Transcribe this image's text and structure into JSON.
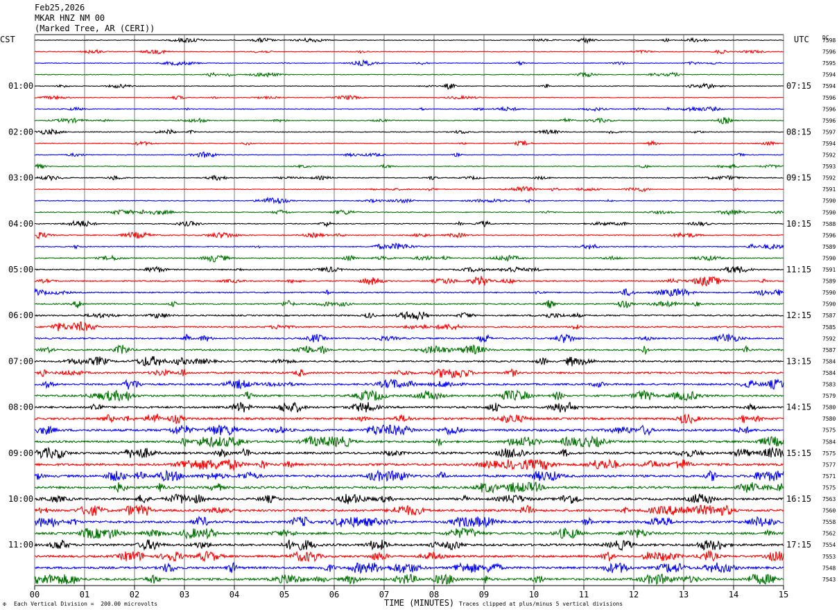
{
  "header": {
    "date": "Feb25,2026",
    "station": "MKAR HNZ NM 00",
    "location": "(Marked Tree, AR (CERI))"
  },
  "left_zone": "CST",
  "right_zone": "UTC",
  "dc_label": "DC",
  "footer": {
    "scale_note": "Each Vertical Division =  200.00 microvolts",
    "clip_note": "Traces clipped at plus/minus 5 vertical divisions",
    "mark": "✠"
  },
  "colors": {
    "trace_cycle": [
      "#000000",
      "#ff0000",
      "#0000ff",
      "#007000"
    ],
    "grid": "#000000"
  },
  "chart_data": {
    "type": "line",
    "title": "",
    "xlabel": "TIME (MINUTES)",
    "x_ticks": [
      "00",
      "01",
      "02",
      "03",
      "04",
      "05",
      "06",
      "07",
      "08",
      "09",
      "10",
      "11",
      "12",
      "13",
      "14",
      "15"
    ],
    "xlim": [
      0,
      15
    ],
    "grid": true,
    "left_time_labels": [
      "01:00",
      "02:00",
      "03:00",
      "04:00",
      "05:00",
      "06:00",
      "07:00",
      "08:00",
      "09:00",
      "10:00",
      "11:00"
    ],
    "right_time_labels": [
      "07:15",
      "08:15",
      "09:15",
      "10:15",
      "11:15",
      "12:15",
      "13:15",
      "14:15",
      "15:15",
      "16:15",
      "17:15"
    ],
    "dc_offsets": [
      "7598",
      "7596",
      "7595",
      "7594",
      "7594",
      "7596",
      "7596",
      "7596",
      "7597",
      "7594",
      "7592",
      "7593",
      "7592",
      "7591",
      "7590",
      "7590",
      "7588",
      "7596",
      "7589",
      "7590",
      "7591",
      "7589",
      "7590",
      "7590",
      "7587",
      "7585",
      "7592",
      "7587",
      "7584",
      "7584",
      "7583",
      "7579",
      "7580",
      "7580",
      "7575",
      "7584",
      "7575",
      "7577",
      "7571",
      "7575",
      "7563",
      "7560",
      "7558",
      "7562",
      "7554",
      "7553",
      "7548",
      "7543"
    ],
    "trace_activity": [
      1.0,
      1.0,
      1.0,
      1.1,
      1.0,
      1.0,
      1.1,
      1.1,
      1.2,
      1.1,
      1.0,
      1.0,
      1.1,
      1.0,
      1.1,
      1.2,
      1.3,
      1.5,
      1.5,
      1.5,
      1.7,
      1.8,
      1.8,
      1.9,
      2.1,
      2.1,
      2.2,
      2.3,
      2.4,
      2.6,
      2.7,
      2.8,
      3.0,
      3.1,
      3.4,
      3.1,
      3.2,
      3.4,
      3.4,
      3.3,
      3.2,
      3.3,
      3.3,
      3.3,
      3.3,
      3.2,
      3.3,
      3.3
    ]
  }
}
